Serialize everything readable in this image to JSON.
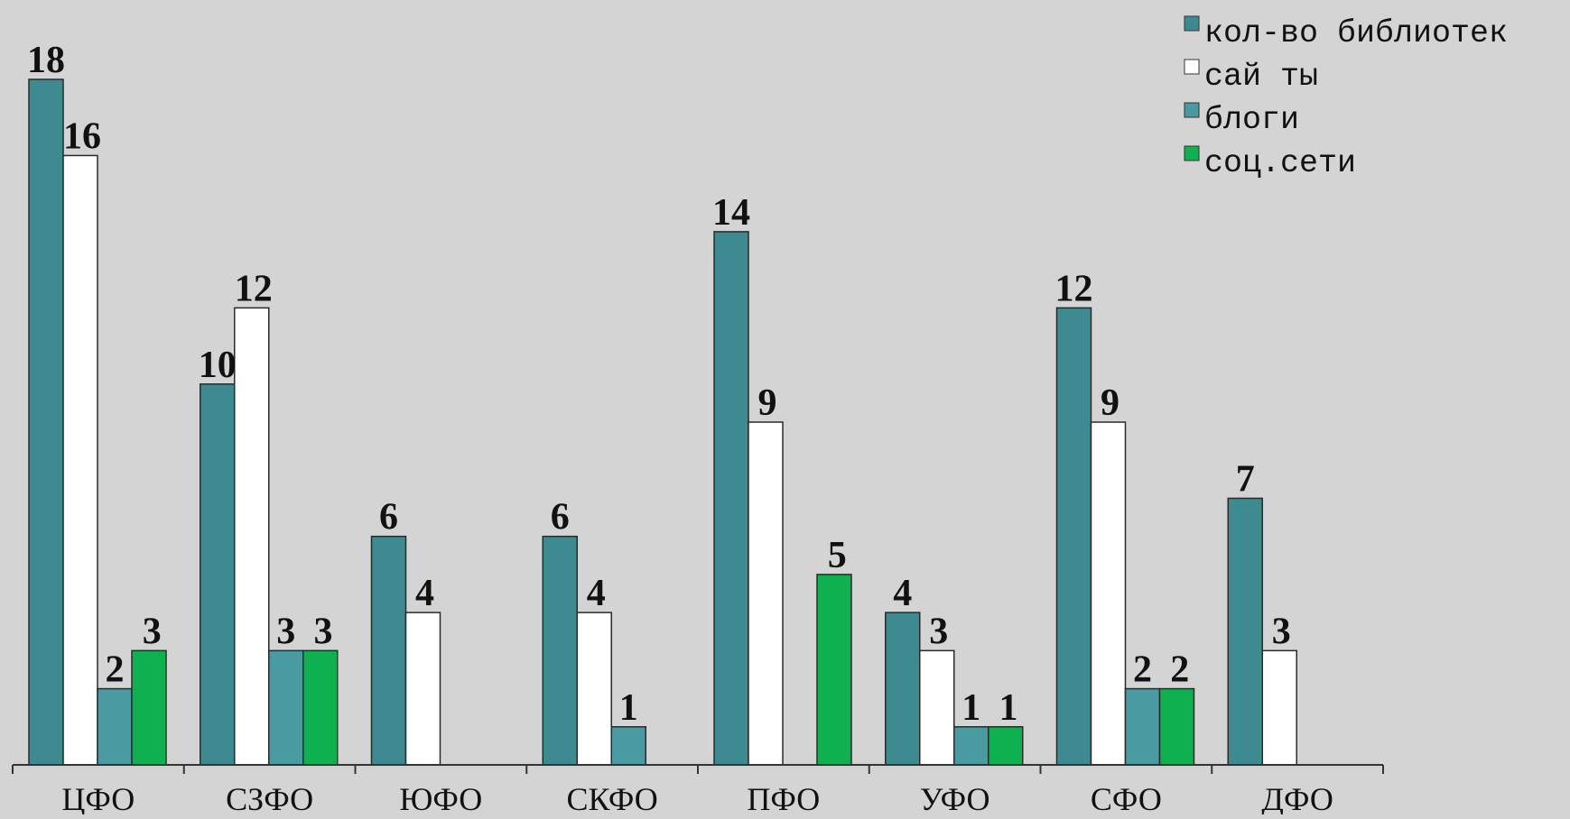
{
  "chart_data": {
    "type": "bar",
    "categories": [
      "ЦФО",
      "СЗФО",
      "ЮФО",
      "СКФО",
      "ПФО",
      "УФО",
      "СФО",
      "ДФО"
    ],
    "series": [
      {
        "name": "кол-во библиотек",
        "color": "#3d8b91",
        "values": [
          18,
          10,
          6,
          6,
          14,
          4,
          12,
          7
        ]
      },
      {
        "name": "сай ты",
        "color": "#ffffff",
        "values": [
          16,
          12,
          4,
          4,
          9,
          3,
          9,
          3
        ]
      },
      {
        "name": "блоги",
        "color": "#4a9aa2",
        "values": [
          2,
          3,
          null,
          1,
          null,
          1,
          2,
          null
        ]
      },
      {
        "name": "соц.сети",
        "color": "#0fb04f",
        "values": [
          3,
          3,
          null,
          null,
          5,
          1,
          2,
          null
        ]
      }
    ],
    "ylim": [
      0,
      18
    ],
    "grid": false,
    "legend_position": "top-right",
    "title": "",
    "xlabel": "",
    "ylabel": ""
  }
}
